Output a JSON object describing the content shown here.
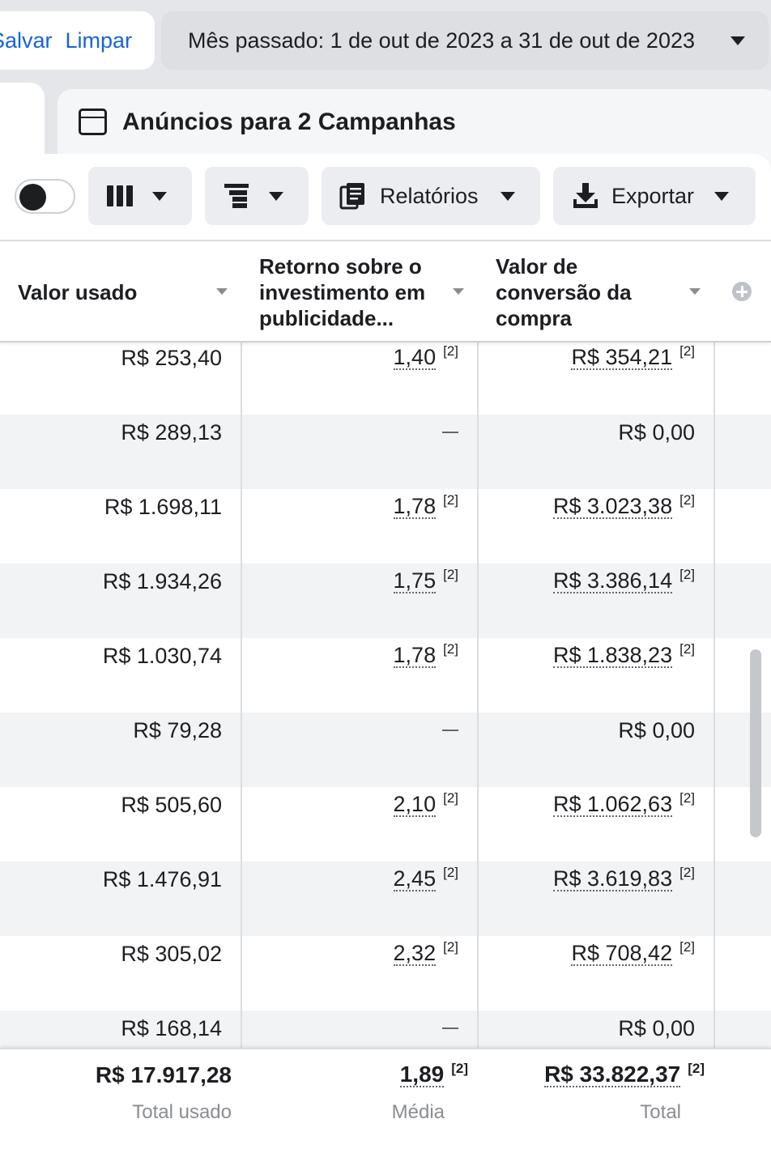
{
  "topbar": {
    "save_label": "Salvar",
    "clear_label": "Limpar",
    "date_range": "Mês passado: 1 de out de 2023 a 31 de out de 2023"
  },
  "tab": {
    "title": "Anúncios para 2 Campanhas"
  },
  "toolbar": {
    "toggle_state": "off",
    "columns_icon": "columns-icon",
    "breakdown_icon": "breakdown-icon",
    "reports_icon": "reports-icon",
    "reports_label": "Relatórios",
    "export_icon": "download-icon",
    "export_label": "Exportar"
  },
  "table": {
    "columns": [
      {
        "label": "Valor usado"
      },
      {
        "label_lines": [
          "Retorno sobre o",
          "investimento em",
          "publicidade..."
        ]
      },
      {
        "label_lines": [
          "Valor de",
          "conversão da",
          "compra"
        ]
      }
    ],
    "add_column_icon": "plus-circle-icon",
    "rows": [
      {
        "spent": "R$ 253,40",
        "roas": "1,40",
        "roas_ref": "[2]",
        "conv": "R$ 354,21",
        "conv_ref": "[2]"
      },
      {
        "spent": "R$ 289,13",
        "roas": "—",
        "roas_ref": "",
        "conv": "R$ 0,00",
        "conv_ref": ""
      },
      {
        "spent": "R$ 1.698,11",
        "roas": "1,78",
        "roas_ref": "[2]",
        "conv": "R$ 3.023,38",
        "conv_ref": "[2]"
      },
      {
        "spent": "R$ 1.934,26",
        "roas": "1,75",
        "roas_ref": "[2]",
        "conv": "R$ 3.386,14",
        "conv_ref": "[2]"
      },
      {
        "spent": "R$ 1.030,74",
        "roas": "1,78",
        "roas_ref": "[2]",
        "conv": "R$ 1.838,23",
        "conv_ref": "[2]"
      },
      {
        "spent": "R$ 79,28",
        "roas": "—",
        "roas_ref": "",
        "conv": "R$ 0,00",
        "conv_ref": ""
      },
      {
        "spent": "R$ 505,60",
        "roas": "2,10",
        "roas_ref": "[2]",
        "conv": "R$ 1.062,63",
        "conv_ref": "[2]"
      },
      {
        "spent": "R$ 1.476,91",
        "roas": "2,45",
        "roas_ref": "[2]",
        "conv": "R$ 3.619,83",
        "conv_ref": "[2]"
      },
      {
        "spent": "R$ 305,02",
        "roas": "2,32",
        "roas_ref": "[2]",
        "conv": "R$ 708,42",
        "conv_ref": "[2]"
      },
      {
        "spent": "R$ 168,14",
        "roas": "—",
        "roas_ref": "",
        "conv": "R$ 0,00",
        "conv_ref": ""
      }
    ],
    "footer": {
      "spent_total": "R$ 17.917,28",
      "spent_label": "Total usado",
      "roas_avg": "1,89",
      "roas_ref": "[2]",
      "roas_label": "Média",
      "conv_total": "R$ 33.822,37",
      "conv_ref": "[2]",
      "conv_label": "Total"
    }
  }
}
